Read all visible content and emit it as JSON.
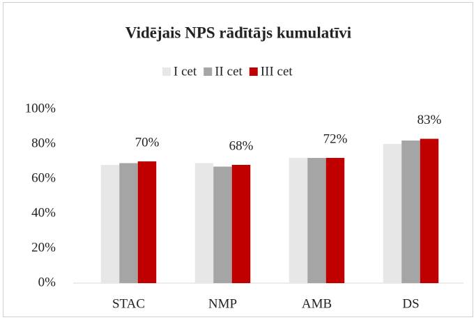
{
  "chart_data": {
    "type": "bar",
    "title": "Vidējais NPS rādītājs kumulatīvi",
    "categories": [
      "STAC",
      "NMP",
      "AMB",
      "DS"
    ],
    "series": [
      {
        "name": "I cet",
        "color": "#e7e7e7",
        "values": [
          68,
          69,
          72,
          80
        ]
      },
      {
        "name": "II cet",
        "color": "#a5a5a5",
        "values": [
          69,
          67,
          72,
          82
        ]
      },
      {
        "name": "III cet",
        "color": "#c00000",
        "values": [
          70,
          68,
          72,
          83
        ],
        "value_labels": [
          "70%",
          "68%",
          "72%",
          "83%"
        ]
      }
    ],
    "ylim": [
      0,
      100
    ],
    "yticks": [
      {
        "value": 0,
        "label": "0%"
      },
      {
        "value": 20,
        "label": "20%"
      },
      {
        "value": 40,
        "label": "40%"
      },
      {
        "value": 60,
        "label": "60%"
      },
      {
        "value": 80,
        "label": "80%"
      },
      {
        "value": 100,
        "label": "100%"
      }
    ],
    "grid": false,
    "legend": "top"
  }
}
